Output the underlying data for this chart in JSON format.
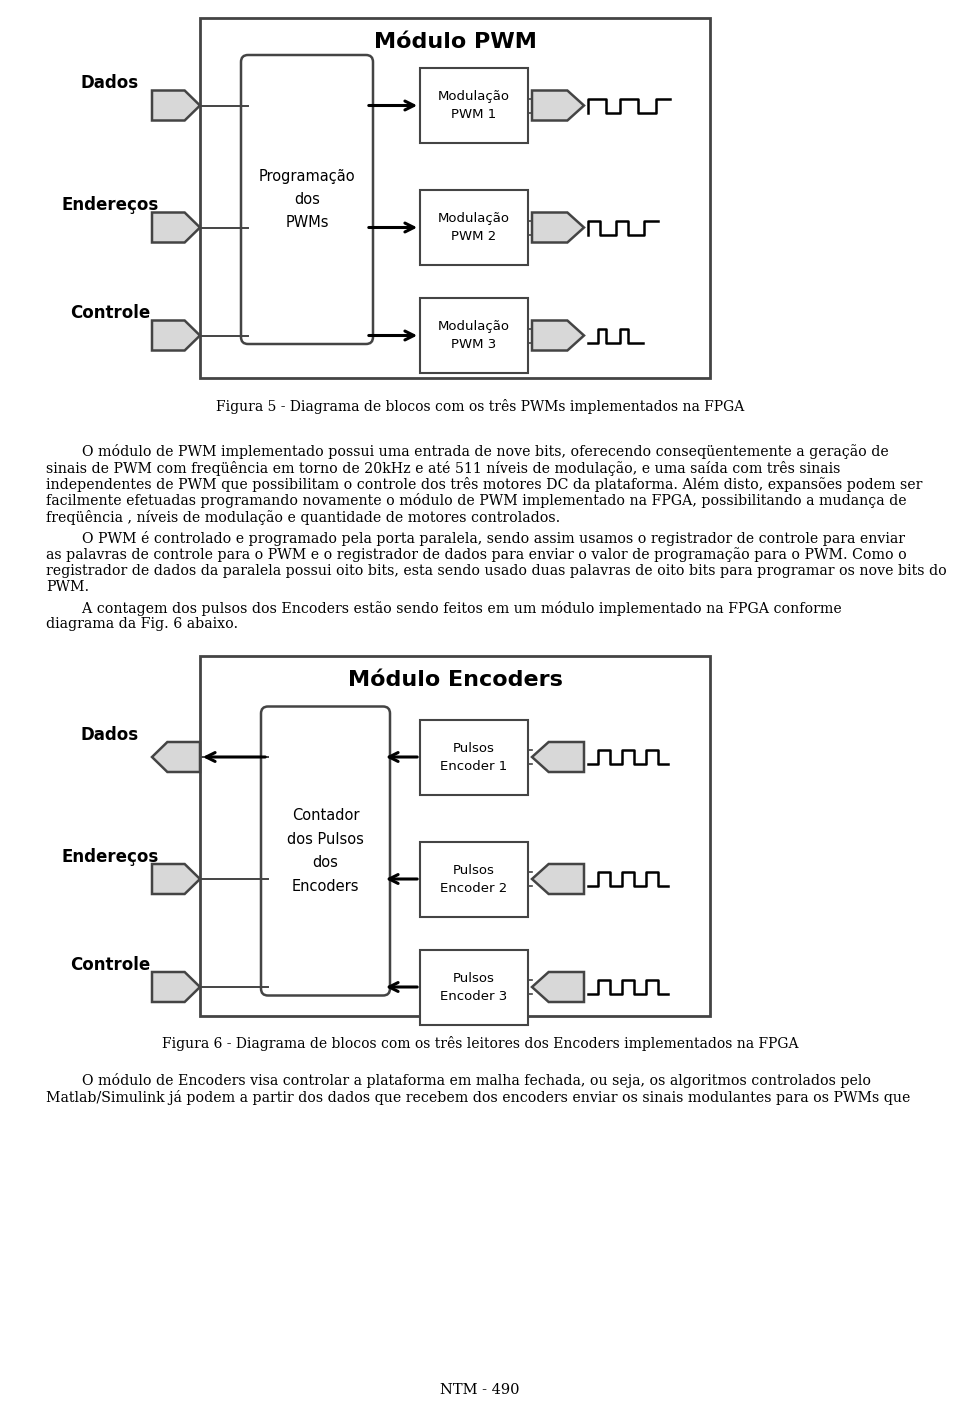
{
  "bg_color": "#ffffff",
  "fig_width": 9.6,
  "fig_height": 14.16,
  "fig5_caption": "Figura 5 - Diagrama de blocos com os três PWMs implementados na FPGA",
  "fig6_caption": "Figura 6 - Diagrama de blocos com os três leitores dos Encoders implementados na FPGA",
  "para1_lines": [
    "        O módulo de PWM implementado possui uma entrada de nove bits, oferecendo conseqüentemente a geração de",
    "sinais de PWM com freqüência em torno de 20kHz e até 511 níveis de modulação, e uma saída com três sinais",
    "independentes de PWM que possibilitam o controle dos três motores DC da plataforma. Além disto, expansões podem ser",
    "facilmente efetuadas programando novamente o módulo de PWM implementado na FPGA, possibilitando a mudança de",
    "freqüência , níveis de modulação e quantidade de motores controlados."
  ],
  "para2_lines": [
    "        O PWM é controlado e programado pela porta paralela, sendo assim usamos o registrador de controle para enviar",
    "as palavras de controle para o PWM e o registrador de dados para enviar o valor de programação para o PWM. Como o",
    "registrador de dados da paralela possui oito bits, esta sendo usado duas palavras de oito bits para programar os nove bits do",
    "PWM."
  ],
  "para3_lines": [
    "        A contagem dos pulsos dos Encoders estão sendo feitos em um módulo implementado na FPGA conforme",
    "diagrama da Fig. 6 abaixo."
  ],
  "para4_lines": [
    "        O módulo de Encoders visa controlar a plataforma em malha fechada, ou seja, os algoritmos controlados pelo",
    "Matlab/Simulink já podem a partir dos dados que recebem dos encoders enviar os sinais modulantes para os PWMs que"
  ],
  "footer": "NTM - 490",
  "pwm_title": "Módulo PWM",
  "pwm_center_text": "Programação\ndos\nPWMs",
  "pwm_labels": [
    "Modulação\nPWM 1",
    "Modulação\nPWM 2",
    "Modulação\nPWM 3"
  ],
  "enc_title": "Módulo Encoders",
  "enc_center_text": "Contador\ndos Pulsos\ndos\nEncoders",
  "enc_labels": [
    "Pulsos\nEncoder 1",
    "Pulsos\nEncoder 2",
    "Pulsos\nEncoder 3"
  ],
  "input_labels_pwm": [
    "Dados",
    "Endereços",
    "Controle"
  ],
  "input_labels_enc": [
    "Dados",
    "Endereços",
    "Controle"
  ],
  "arrow_fill": "#d8d8d8",
  "arrow_edge": "#444444",
  "box_edge": "#444444"
}
